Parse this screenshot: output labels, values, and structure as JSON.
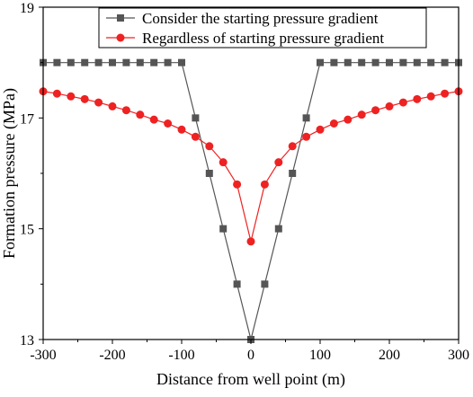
{
  "chart_data": {
    "type": "line",
    "xlabel": "Distance from well point (m)",
    "ylabel": "Formation pressure (MPa)",
    "xlim": [
      -300,
      300
    ],
    "ylim": [
      13,
      19
    ],
    "xticks": [
      "-300",
      "-200",
      "-100",
      "0",
      "100",
      "200",
      "300"
    ],
    "yticks": [
      "13",
      "15",
      "17",
      "19"
    ],
    "legend_position": "top-right",
    "series": [
      {
        "name": "Consider the starting pressure gradient",
        "color": "#555555",
        "marker": "square",
        "x": [
          -300,
          -280,
          -260,
          -240,
          -220,
          -200,
          -180,
          -160,
          -140,
          -120,
          -100,
          -80,
          -60,
          -40,
          -20,
          0,
          20,
          40,
          60,
          80,
          100,
          120,
          140,
          160,
          180,
          200,
          220,
          240,
          260,
          280,
          300
        ],
        "y": [
          18,
          18,
          18,
          18,
          18,
          18,
          18,
          18,
          18,
          18,
          18,
          17,
          16,
          15,
          14,
          13,
          14,
          15,
          16,
          17,
          18,
          18,
          18,
          18,
          18,
          18,
          18,
          18,
          18,
          18,
          18
        ]
      },
      {
        "name": "Regardless of starting pressure gradient",
        "color": "#ee2222",
        "marker": "circle",
        "x": [
          -300,
          -280,
          -260,
          -240,
          -220,
          -200,
          -180,
          -160,
          -140,
          -120,
          -100,
          -80,
          -60,
          -40,
          -20,
          0,
          20,
          40,
          60,
          80,
          100,
          120,
          140,
          160,
          180,
          200,
          220,
          240,
          260,
          280,
          300
        ],
        "y": [
          17.48,
          17.44,
          17.39,
          17.34,
          17.28,
          17.21,
          17.14,
          17.06,
          16.97,
          16.9,
          16.79,
          16.66,
          16.49,
          16.2,
          15.8,
          14.77,
          15.8,
          16.2,
          16.49,
          16.66,
          16.79,
          16.9,
          16.97,
          17.06,
          17.14,
          17.21,
          17.28,
          17.34,
          17.39,
          17.44,
          17.48
        ]
      }
    ]
  }
}
